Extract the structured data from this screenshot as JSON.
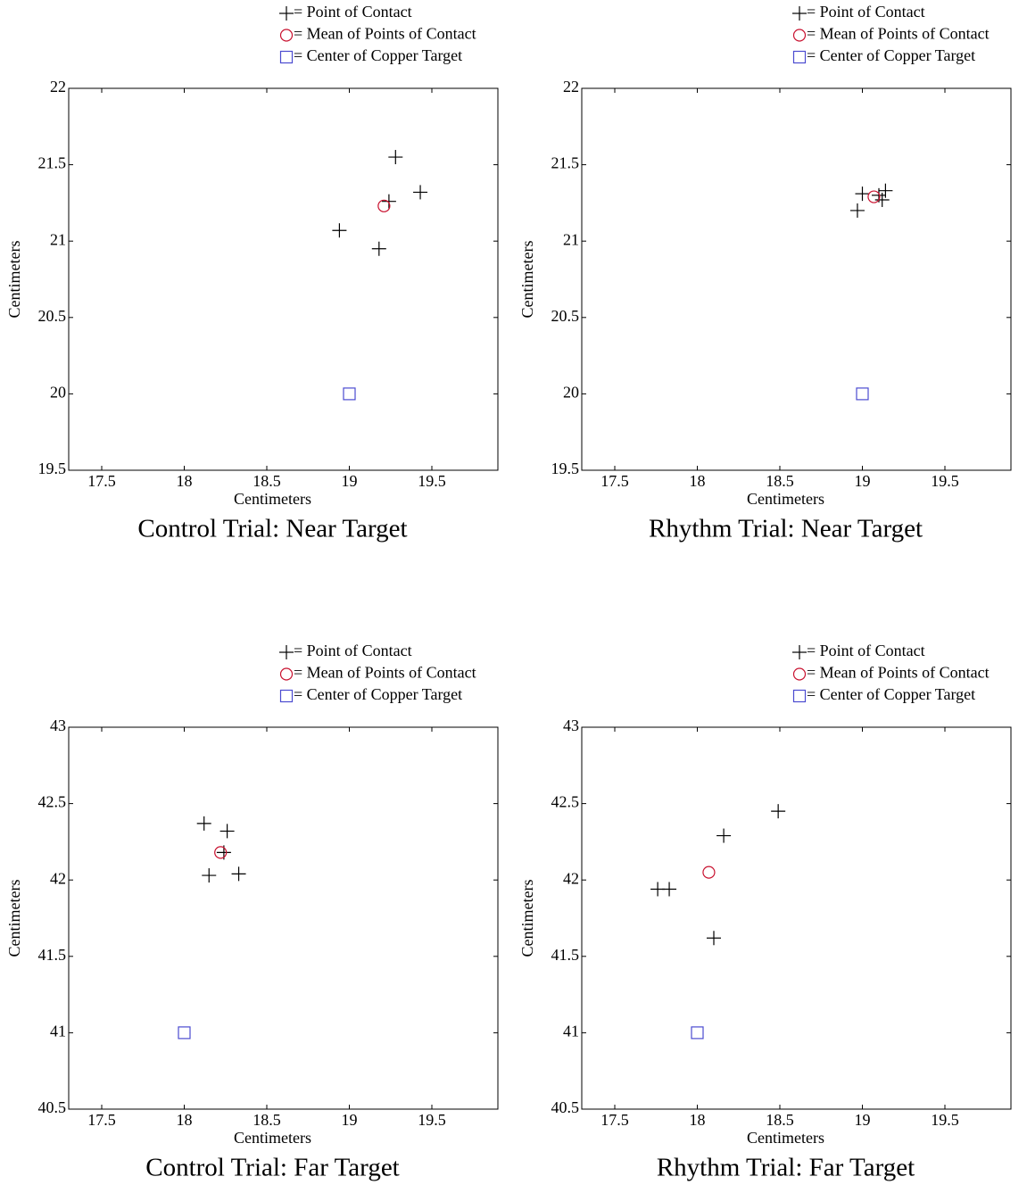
{
  "chart_data": [
    {
      "type": "scatter",
      "title": "Control Trial: Near Target",
      "xlabel": "Centimeters",
      "ylabel": "Centimeters",
      "xlim": [
        17.3,
        19.9
      ],
      "ylim": [
        19.5,
        22
      ],
      "xticks": [
        17.5,
        18,
        18.5,
        19,
        19.5
      ],
      "yticks": [
        19.5,
        20,
        20.5,
        21,
        21.5,
        22
      ],
      "series": [
        {
          "name": "= Point of Contact",
          "color": "#000000",
          "marker": "plus",
          "x": [
            19.28,
            19.43,
            19.24,
            18.94,
            19.18
          ],
          "values": [
            21.55,
            21.32,
            21.26,
            21.07,
            20.95
          ]
        },
        {
          "name": "= Mean of Points of Contact",
          "color": "#c8102e",
          "marker": "circle",
          "x": [
            19.21
          ],
          "values": [
            21.23
          ]
        },
        {
          "name": "= Center of Copper Target",
          "color": "#4b4bd0",
          "marker": "square",
          "x": [
            19
          ],
          "values": [
            20
          ]
        }
      ]
    },
    {
      "type": "scatter",
      "title": "Rhythm Trial: Near Target",
      "xlabel": "Centimeters",
      "ylabel": "Centimeters",
      "xlim": [
        17.3,
        19.9
      ],
      "ylim": [
        19.5,
        22
      ],
      "xticks": [
        17.5,
        18,
        18.5,
        19,
        19.5
      ],
      "yticks": [
        19.5,
        20,
        20.5,
        21,
        21.5,
        22
      ],
      "series": [
        {
          "name": "= Point of Contact",
          "color": "#000000",
          "marker": "plus",
          "x": [
            19.0,
            18.97,
            19.1,
            19.14,
            19.12
          ],
          "values": [
            21.31,
            21.2,
            21.3,
            21.33,
            21.27
          ]
        },
        {
          "name": "= Mean of Points of Contact",
          "color": "#c8102e",
          "marker": "circle",
          "x": [
            19.07
          ],
          "values": [
            21.29
          ]
        },
        {
          "name": "= Center of Copper Target",
          "color": "#4b4bd0",
          "marker": "square",
          "x": [
            19
          ],
          "values": [
            20
          ]
        }
      ]
    },
    {
      "type": "scatter",
      "title": "Control Trial: Far Target",
      "xlabel": "Centimeters",
      "ylabel": "Centimeters",
      "xlim": [
        17.3,
        19.9
      ],
      "ylim": [
        40.5,
        43
      ],
      "xticks": [
        17.5,
        18,
        18.5,
        19,
        19.5
      ],
      "yticks": [
        40.5,
        41,
        41.5,
        42,
        42.5,
        43
      ],
      "series": [
        {
          "name": "= Point of Contact",
          "color": "#000000",
          "marker": "plus",
          "x": [
            18.12,
            18.26,
            18.24,
            18.15,
            18.33
          ],
          "values": [
            42.37,
            42.32,
            42.18,
            42.03,
            42.04
          ]
        },
        {
          "name": "= Mean of Points of Contact",
          "color": "#c8102e",
          "marker": "circle",
          "x": [
            18.22
          ],
          "values": [
            42.18
          ]
        },
        {
          "name": "= Center of Copper Target",
          "color": "#4b4bd0",
          "marker": "square",
          "x": [
            18
          ],
          "values": [
            41
          ]
        }
      ]
    },
    {
      "type": "scatter",
      "title": "Rhythm Trial: Far Target",
      "xlabel": "Centimeters",
      "ylabel": "Centimeters",
      "xlim": [
        17.3,
        19.9
      ],
      "ylim": [
        40.5,
        43
      ],
      "xticks": [
        17.5,
        18,
        18.5,
        19,
        19.5
      ],
      "yticks": [
        40.5,
        41,
        41.5,
        42,
        42.5,
        43
      ],
      "series": [
        {
          "name": "= Point of Contact",
          "color": "#000000",
          "marker": "plus",
          "x": [
            17.76,
            17.83,
            18.16,
            18.49,
            18.1
          ],
          "values": [
            41.94,
            41.94,
            42.29,
            42.45,
            41.62
          ]
        },
        {
          "name": "= Mean of Points of Contact",
          "color": "#c8102e",
          "marker": "circle",
          "x": [
            18.07
          ],
          "values": [
            42.05
          ]
        },
        {
          "name": "= Center of Copper Target",
          "color": "#4b4bd0",
          "marker": "square",
          "x": [
            18
          ],
          "values": [
            41
          ]
        }
      ]
    }
  ]
}
